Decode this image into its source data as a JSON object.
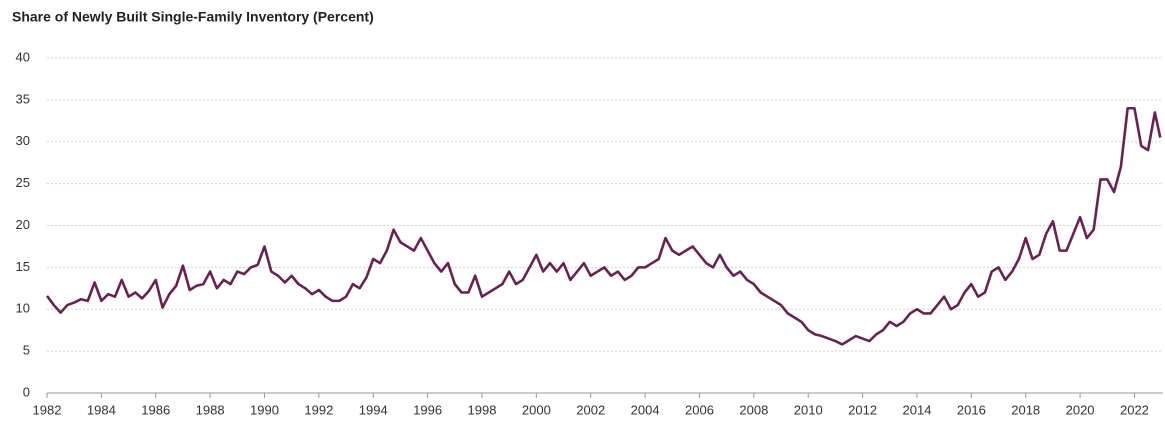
{
  "chart_data": {
    "type": "line",
    "title": "Share of Newly Built Single-Family Inventory (Percent)",
    "x": [
      1982,
      1982.25,
      1982.5,
      1982.75,
      1983,
      1983.25,
      1983.5,
      1983.75,
      1984,
      1984.25,
      1984.5,
      1984.75,
      1985,
      1985.25,
      1985.5,
      1985.75,
      1986,
      1986.25,
      1986.5,
      1986.75,
      1987,
      1987.25,
      1987.5,
      1987.75,
      1988,
      1988.25,
      1988.5,
      1988.75,
      1989,
      1989.25,
      1989.5,
      1989.75,
      1990,
      1990.25,
      1990.5,
      1990.75,
      1991,
      1991.25,
      1991.5,
      1991.75,
      1992,
      1992.25,
      1992.5,
      1992.75,
      1993,
      1993.25,
      1993.5,
      1993.75,
      1994,
      1994.25,
      1994.5,
      1994.75,
      1995,
      1995.25,
      1995.5,
      1995.75,
      1996,
      1996.25,
      1996.5,
      1996.75,
      1997,
      1997.25,
      1997.5,
      1997.75,
      1998,
      1998.25,
      1998.5,
      1998.75,
      1999,
      1999.25,
      1999.5,
      1999.75,
      2000,
      2000.25,
      2000.5,
      2000.75,
      2001,
      2001.25,
      2001.5,
      2001.75,
      2002,
      2002.25,
      2002.5,
      2002.75,
      2003,
      2003.25,
      2003.5,
      2003.75,
      2004,
      2004.25,
      2004.5,
      2004.75,
      2005,
      2005.25,
      2005.5,
      2005.75,
      2006,
      2006.25,
      2006.5,
      2006.75,
      2007,
      2007.25,
      2007.5,
      2007.75,
      2008,
      2008.25,
      2008.5,
      2008.75,
      2009,
      2009.25,
      2009.5,
      2009.75,
      2010,
      2010.25,
      2010.5,
      2010.75,
      2011,
      2011.25,
      2011.5,
      2011.75,
      2012,
      2012.25,
      2012.5,
      2012.75,
      2013,
      2013.25,
      2013.5,
      2013.75,
      2014,
      2014.25,
      2014.5,
      2014.75,
      2015,
      2015.25,
      2015.5,
      2015.75,
      2016,
      2016.25,
      2016.5,
      2016.75,
      2017,
      2017.25,
      2017.5,
      2017.75,
      2018,
      2018.25,
      2018.5,
      2018.75,
      2019,
      2019.25,
      2019.5,
      2019.75,
      2020,
      2020.25,
      2020.5,
      2020.75,
      2021,
      2021.25,
      2021.5,
      2021.75,
      2022,
      2022.25,
      2022.5,
      2022.75,
      2022.95
    ],
    "series": [
      {
        "color": "#6b2150",
        "values": [
          11.6,
          10.5,
          9.6,
          10.5,
          10.8,
          11.2,
          11.0,
          13.2,
          11.0,
          11.8,
          11.5,
          13.5,
          11.5,
          12.0,
          11.3,
          12.2,
          13.5,
          10.2,
          11.8,
          12.8,
          15.2,
          12.3,
          12.8,
          13.0,
          14.5,
          12.5,
          13.5,
          13.0,
          14.5,
          14.2,
          15.0,
          15.3,
          17.5,
          14.5,
          14.0,
          13.2,
          14.0,
          13.0,
          12.5,
          11.8,
          12.3,
          11.5,
          11.0,
          11.0,
          11.5,
          13.0,
          12.5,
          13.8,
          16.0,
          15.5,
          17.0,
          19.5,
          18.0,
          17.5,
          17.0,
          18.5,
          17.0,
          15.5,
          14.5,
          15.5,
          13.0,
          12.0,
          12.0,
          14.0,
          11.5,
          12.0,
          12.5,
          13.0,
          14.5,
          13.0,
          13.5,
          15.0,
          16.5,
          14.5,
          15.5,
          14.5,
          15.5,
          13.5,
          14.5,
          15.5,
          14.0,
          14.5,
          15.0,
          14.0,
          14.5,
          13.5,
          14.0,
          15.0,
          15.0,
          15.5,
          16.0,
          18.5,
          17.0,
          16.5,
          17.0,
          17.5,
          16.5,
          15.5,
          15.0,
          16.5,
          15.0,
          14.0,
          14.5,
          13.5,
          13.0,
          12.0,
          11.5,
          11.0,
          10.5,
          9.5,
          9.0,
          8.5,
          7.5,
          7.0,
          6.8,
          6.5,
          6.2,
          5.8,
          6.3,
          6.8,
          6.5,
          6.2,
          7.0,
          7.5,
          8.5,
          8.0,
          8.5,
          9.5,
          10.0,
          9.5,
          9.5,
          10.5,
          11.5,
          10.0,
          10.5,
          12.0,
          13.0,
          11.5,
          12.0,
          14.5,
          15.0,
          13.5,
          14.5,
          16.0,
          18.5,
          16.0,
          16.5,
          19.0,
          20.5,
          17.0,
          17.0,
          19.0,
          21.0,
          18.5,
          19.5,
          25.5,
          25.5,
          24.0,
          27.0,
          34.0,
          34.0,
          29.5,
          29.0,
          33.5,
          30.5
        ]
      }
    ],
    "xlim": [
      1982,
      2023.05
    ],
    "xticks": [
      1982,
      1984,
      1986,
      1988,
      1990,
      1992,
      1994,
      1996,
      1998,
      2000,
      2002,
      2004,
      2006,
      2008,
      2010,
      2012,
      2014,
      2016,
      2018,
      2020,
      2022
    ],
    "ylim": [
      0,
      40
    ],
    "yticks": [
      0,
      5,
      10,
      15,
      20,
      25,
      30,
      35,
      40
    ],
    "grid": true
  }
}
